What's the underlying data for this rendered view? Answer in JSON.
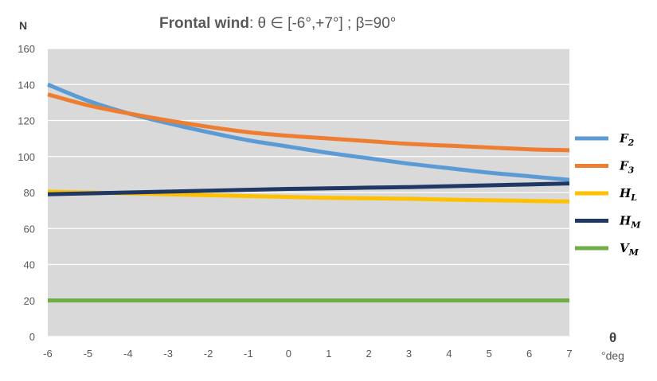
{
  "chart_data": {
    "type": "line",
    "title": "Frontal wind",
    "subtitle": ": θ ∈ [-6°,+7°] ; β=90°",
    "ylabel": "N",
    "xlabel": "θ",
    "xunit": "°deg",
    "x": [
      -6,
      -5,
      -4,
      -3,
      -2,
      -1,
      0,
      1,
      2,
      3,
      4,
      5,
      6,
      7
    ],
    "xlim": [
      -6,
      7
    ],
    "ylim": [
      0,
      160
    ],
    "yticks": [
      0,
      20,
      40,
      60,
      80,
      100,
      120,
      140,
      160
    ],
    "grid": true,
    "legend_position": "right",
    "series": [
      {
        "name": "F2",
        "symbol": "F",
        "sub": "2",
        "color": "#5b9bd5",
        "values": [
          140,
          131,
          124,
          118.5,
          113.5,
          109,
          105.5,
          102,
          99,
          96,
          93.5,
          91,
          89,
          87
        ]
      },
      {
        "name": "F3",
        "symbol": "F",
        "sub": "3",
        "color": "#ed7d31",
        "values": [
          134.5,
          128.5,
          124,
          120,
          116.5,
          113.5,
          111.5,
          110,
          108.5,
          107,
          106,
          105,
          104,
          103.5
        ]
      },
      {
        "name": "HL",
        "symbol": "H",
        "sub": "L",
        "color": "#ffc000",
        "values": [
          80.5,
          80,
          79.5,
          79,
          78.5,
          78,
          77.5,
          77,
          76.8,
          76.5,
          76,
          75.7,
          75.3,
          75
        ]
      },
      {
        "name": "HM",
        "symbol": "H",
        "sub": "M",
        "color": "#1f3864",
        "values": [
          79,
          79.5,
          80,
          80.5,
          81,
          81.5,
          82,
          82.3,
          82.7,
          83,
          83.5,
          84,
          84.5,
          85
        ]
      },
      {
        "name": "VM",
        "symbol": "V",
        "sub": "M",
        "color": "#70ad47",
        "values": [
          20,
          20,
          20,
          20,
          20,
          20,
          20,
          20,
          20,
          20,
          20,
          20,
          20,
          20
        ]
      }
    ]
  }
}
